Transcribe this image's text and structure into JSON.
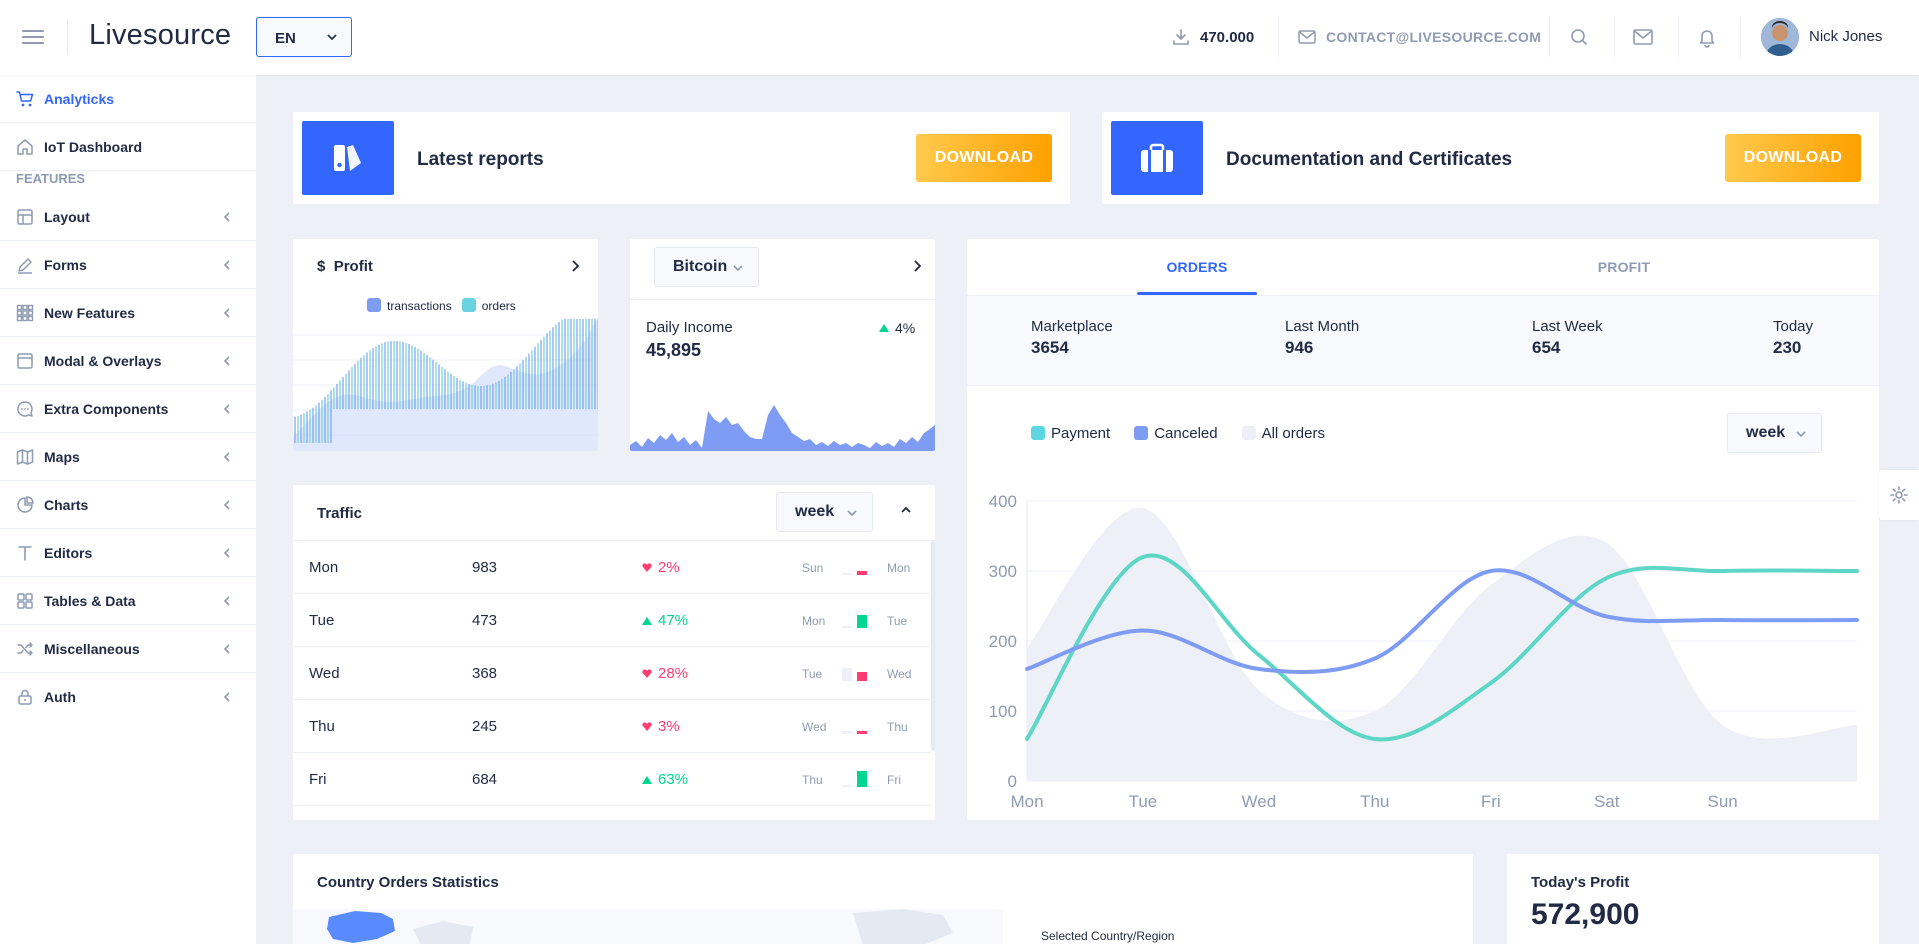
{
  "header": {
    "brand": "Livesource",
    "language": "EN",
    "download_count": "470.000",
    "contact_email": "CONTACT@LIVESOURCE.COM",
    "user_name": "Nick Jones"
  },
  "sidebar": {
    "items": [
      {
        "label": "Analyticks",
        "icon": "shopping-cart-icon",
        "active": true
      },
      {
        "label": "IoT Dashboard",
        "icon": "home-icon"
      }
    ],
    "section_label": "FEATURES",
    "feature_items": [
      {
        "label": "Layout",
        "icon": "layout-icon"
      },
      {
        "label": "Forms",
        "icon": "edit-icon"
      },
      {
        "label": "New Features",
        "icon": "grid-icon"
      },
      {
        "label": "Modal & Overlays",
        "icon": "browser-icon"
      },
      {
        "label": "Extra Components",
        "icon": "message-circle-icon"
      },
      {
        "label": "Maps",
        "icon": "map-icon"
      },
      {
        "label": "Charts",
        "icon": "pie-chart-icon"
      },
      {
        "label": "Editors",
        "icon": "text-icon"
      },
      {
        "label": "Tables & Data",
        "icon": "grid-icon"
      },
      {
        "label": "Miscellaneous",
        "icon": "shuffle-icon"
      },
      {
        "label": "Auth",
        "icon": "lock-icon"
      }
    ]
  },
  "reports": [
    {
      "title": "Latest reports",
      "button": "DOWNLOAD",
      "icon": "pie-chart-icon"
    },
    {
      "title": "Documentation and Certificates",
      "button": "DOWNLOAD",
      "icon": "briefcase-icon"
    }
  ],
  "profit_card": {
    "title": "Profit",
    "currency_symbol": "$",
    "legend": [
      "transactions",
      "orders"
    ],
    "colors": {
      "transactions": "#7f9cf5",
      "orders": "#6ad2e0"
    }
  },
  "bitcoin_card": {
    "currency": "Bitcoin",
    "label": "Daily Income",
    "value": "45,895",
    "delta": "4%",
    "delta_direction": "up"
  },
  "traffic": {
    "title": "Traffic",
    "period": "week",
    "rows": [
      {
        "day": "Mon",
        "value": "983",
        "delta": "2%",
        "direction": "down",
        "from": "Sun",
        "to": "Mon",
        "prev_level": 0.1,
        "cur_level": 0.25
      },
      {
        "day": "Tue",
        "value": "473",
        "delta": "47%",
        "direction": "up",
        "from": "Mon",
        "to": "Tue",
        "prev_level": 0.05,
        "cur_level": 0.8
      },
      {
        "day": "Wed",
        "value": "368",
        "delta": "28%",
        "direction": "down",
        "from": "Tue",
        "to": "Wed",
        "prev_level": 0.8,
        "cur_level": 0.55
      },
      {
        "day": "Thu",
        "value": "245",
        "delta": "3%",
        "direction": "down",
        "from": "Wed",
        "to": "Thu",
        "prev_level": 0.2,
        "cur_level": 0.2
      },
      {
        "day": "Fri",
        "value": "684",
        "delta": "63%",
        "direction": "up",
        "from": "Thu",
        "to": "Fri",
        "prev_level": 0.1,
        "cur_level": 1.0
      }
    ]
  },
  "orders": {
    "tabs": [
      "ORDERS",
      "PROFIT"
    ],
    "active_tab": "ORDERS",
    "stats": [
      {
        "label": "Marketplace",
        "value": "3654"
      },
      {
        "label": "Last Month",
        "value": "946"
      },
      {
        "label": "Last Week",
        "value": "654"
      },
      {
        "label": "Today",
        "value": "230"
      }
    ],
    "legend": [
      "Payment",
      "Canceled",
      "All orders"
    ],
    "period": "week"
  },
  "chart_data": {
    "type": "line",
    "categories": [
      "Mon",
      "Tue",
      "Wed",
      "Thu",
      "Fri",
      "Sat",
      "Sun"
    ],
    "ylim": [
      0,
      400
    ],
    "yticks": [
      0,
      100,
      200,
      300,
      400
    ],
    "series": [
      {
        "name": "Payment",
        "color": "#5dd6c6",
        "values": [
          60,
          320,
          180,
          60,
          140,
          290,
          300
        ]
      },
      {
        "name": "Canceled",
        "color": "#7f9cf5",
        "values": [
          160,
          215,
          160,
          175,
          300,
          235,
          230
        ]
      },
      {
        "name": "All orders",
        "color": "#edf1f7",
        "values": [
          190,
          390,
          130,
          100,
          280,
          340,
          80
        ]
      }
    ],
    "legend_position": "top-left",
    "grid": true
  },
  "bottom": {
    "country_title": "Country Orders Statistics",
    "selected_label": "Selected Country/Region",
    "profit_label": "Today's Profit",
    "profit_value": "572,900"
  }
}
